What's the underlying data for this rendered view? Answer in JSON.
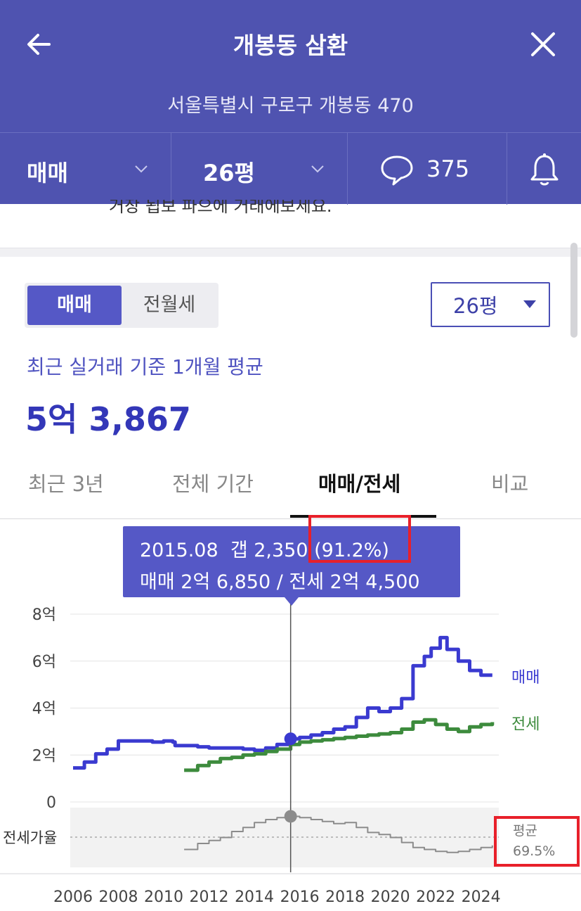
{
  "header": {
    "title": "개봉동 삼환",
    "address": "서울특별시 구로구 개봉동 470"
  },
  "filter_bar": {
    "trade_type": "매매",
    "size": "26평",
    "comment_count": "375"
  },
  "cut_text": "거장 됩보 파으에 거래에보세요.",
  "segment": {
    "active": "매매",
    "inactive": "전월세"
  },
  "size_select": {
    "value": "26평"
  },
  "summary": {
    "label": "최근 실거래 기준 1개월 평균",
    "price": "5억 3,867"
  },
  "tabs": [
    "최근 3년",
    "전체 기간",
    "매매/전세",
    "비교"
  ],
  "active_tab": "매매/전세",
  "tooltip": {
    "line1": "2015.08  갭 2,350 (91.2%)",
    "line2": "매매 2억 6,850 / 전세 2억 4,500"
  },
  "chart_data": {
    "type": "line",
    "y_ticks": [
      "8억",
      "6억",
      "4억",
      "2억",
      "0"
    ],
    "ylim": [
      0,
      8
    ],
    "x_ticks": [
      "2006",
      "2008",
      "2010",
      "2012",
      "2014",
      "2016",
      "2018",
      "2020",
      "2022",
      "2024"
    ],
    "xlim": [
      2006,
      2024.6
    ],
    "ratio_label": "전세가율",
    "avg_label": "평균",
    "avg_value": "69.5%",
    "series": [
      {
        "name": "매매",
        "color": "#3a3ad0",
        "x": [
          2006.0,
          2006.5,
          2007.0,
          2007.5,
          2008.0,
          2008.5,
          2009.0,
          2009.5,
          2010.0,
          2010.4,
          2010.5,
          2011.0,
          2011.5,
          2012.0,
          2012.5,
          2013.0,
          2013.5,
          2014.0,
          2014.5,
          2015.0,
          2015.6,
          2016.0,
          2016.5,
          2017.0,
          2017.5,
          2018.0,
          2018.5,
          2019.0,
          2019.5,
          2020.0,
          2020.5,
          2021.0,
          2021.5,
          2021.8,
          2022.2,
          2022.5,
          2023.0,
          2023.5,
          2024.0,
          2024.5
        ],
        "y": [
          1.45,
          1.7,
          2.05,
          2.25,
          2.6,
          2.6,
          2.6,
          2.55,
          2.6,
          2.55,
          2.4,
          2.4,
          2.35,
          2.3,
          2.3,
          2.3,
          2.25,
          2.2,
          2.3,
          2.45,
          2.69,
          2.75,
          2.85,
          2.95,
          3.1,
          3.2,
          3.6,
          4.0,
          3.85,
          4.0,
          4.4,
          5.8,
          6.2,
          6.55,
          7.0,
          6.5,
          6.0,
          5.6,
          5.4,
          5.4
        ]
      },
      {
        "name": "전세",
        "color": "#3d8b3d",
        "x": [
          2010.9,
          2011.5,
          2012.0,
          2012.5,
          2013.0,
          2013.5,
          2014.0,
          2014.5,
          2015.0,
          2015.6,
          2016.0,
          2016.5,
          2017.0,
          2017.5,
          2018.0,
          2018.5,
          2019.0,
          2019.5,
          2020.0,
          2020.5,
          2021.0,
          2021.5,
          2022.0,
          2022.5,
          2023.0,
          2023.5,
          2024.0,
          2024.5
        ],
        "y": [
          1.35,
          1.55,
          1.7,
          1.85,
          1.9,
          2.0,
          2.05,
          2.15,
          2.25,
          2.45,
          2.55,
          2.6,
          2.65,
          2.7,
          2.75,
          2.8,
          2.85,
          2.9,
          2.95,
          3.1,
          3.4,
          3.5,
          3.3,
          3.1,
          3.0,
          3.2,
          3.3,
          3.4
        ]
      },
      {
        "name": "전세가율",
        "color": "#8c8c8c",
        "x": [
          2010.9,
          2011.5,
          2012.0,
          2012.5,
          2013.0,
          2013.5,
          2014.0,
          2014.5,
          2015.0,
          2015.6,
          2016.0,
          2016.5,
          2017.0,
          2017.5,
          2018.0,
          2018.5,
          2019.0,
          2019.5,
          2020.0,
          2020.5,
          2021.0,
          2021.5,
          2022.0,
          2022.5,
          2023.0,
          2023.5,
          2024.0,
          2024.5
        ],
        "y": [
          58,
          64,
          67,
          70,
          76,
          80,
          85,
          88,
          90,
          91.2,
          90,
          88,
          86,
          84,
          85,
          80,
          75,
          73,
          70,
          65,
          60,
          58,
          56,
          55,
          56,
          58,
          60,
          62
        ]
      }
    ],
    "highlight": {
      "x": 2015.6,
      "sale": 2.69,
      "jeonse": 2.45,
      "ratio": 91.2
    }
  }
}
